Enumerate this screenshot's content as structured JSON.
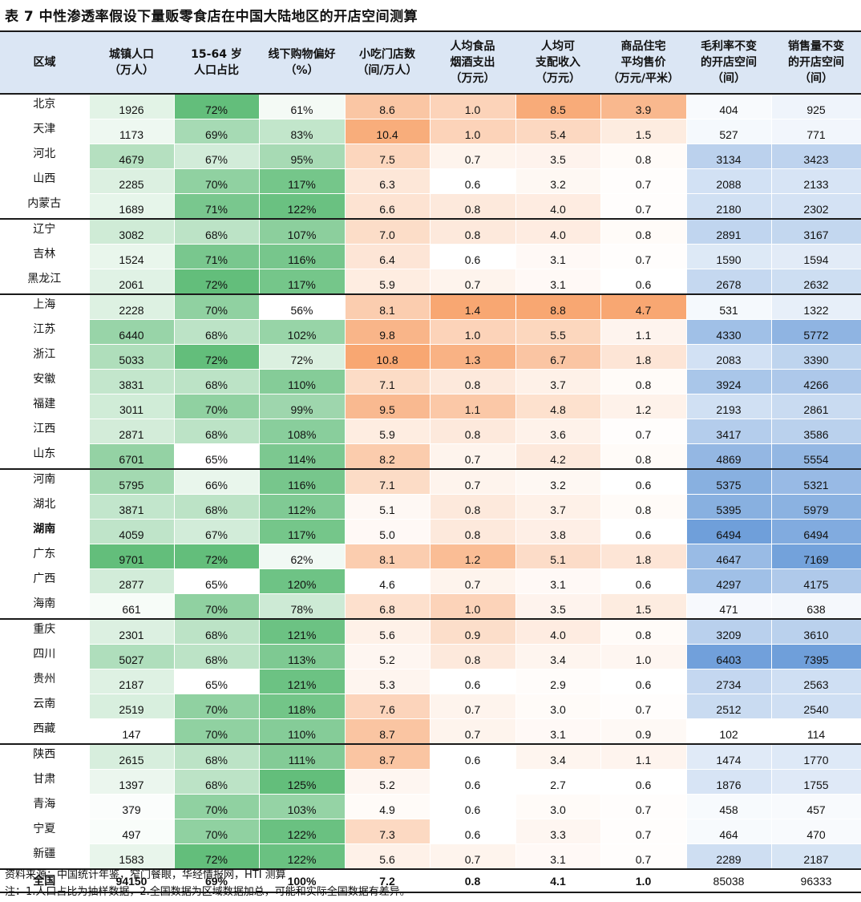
{
  "title": "表 7 中性渗透率假设下量贩零食店在中国大陆地区的开店空间测算",
  "columns": [
    {
      "lines": [
        "区域"
      ]
    },
    {
      "lines": [
        "城镇人口",
        "（万人）"
      ]
    },
    {
      "lines": [
        "15-64 岁",
        "人口占比"
      ]
    },
    {
      "lines": [
        "线下购物偏好",
        "（%）"
      ]
    },
    {
      "lines": [
        "小吃门店数",
        "（间/万人）"
      ]
    },
    {
      "lines": [
        "人均食品",
        "烟酒支出",
        "（万元）"
      ]
    },
    {
      "lines": [
        "人均可",
        "支配收入",
        "（万元）"
      ]
    },
    {
      "lines": [
        "商品住宅",
        "平均售价",
        "（万元/平米）"
      ]
    },
    {
      "lines": [
        "毛利率不变",
        "的开店空间",
        "（间）"
      ]
    },
    {
      "lines": [
        "销售量不变",
        "的开店空间",
        "（间）"
      ]
    }
  ],
  "rows": [
    {
      "region": "北京",
      "pop": "1926",
      "age": "72%",
      "pref": "61%",
      "snack": "8.6",
      "food": "1.0",
      "income": "8.5",
      "house": "3.9",
      "gm": "404",
      "vol": "925",
      "group_start": true
    },
    {
      "region": "天津",
      "pop": "1173",
      "age": "69%",
      "pref": "83%",
      "snack": "10.4",
      "food": "1.0",
      "income": "5.4",
      "house": "1.5",
      "gm": "527",
      "vol": "771"
    },
    {
      "region": "河北",
      "pop": "4679",
      "age": "67%",
      "pref": "95%",
      "snack": "7.5",
      "food": "0.7",
      "income": "3.5",
      "house": "0.8",
      "gm": "3134",
      "vol": "3423"
    },
    {
      "region": "山西",
      "pop": "2285",
      "age": "70%",
      "pref": "117%",
      "snack": "6.3",
      "food": "0.6",
      "income": "3.2",
      "house": "0.7",
      "gm": "2088",
      "vol": "2133"
    },
    {
      "region": "内蒙古",
      "pop": "1689",
      "age": "71%",
      "pref": "122%",
      "snack": "6.6",
      "food": "0.8",
      "income": "4.0",
      "house": "0.7",
      "gm": "2180",
      "vol": "2302"
    },
    {
      "region": "辽宁",
      "pop": "3082",
      "age": "68%",
      "pref": "107%",
      "snack": "7.0",
      "food": "0.8",
      "income": "4.0",
      "house": "0.8",
      "gm": "2891",
      "vol": "3167",
      "group_start": true
    },
    {
      "region": "吉林",
      "pop": "1524",
      "age": "71%",
      "pref": "116%",
      "snack": "6.4",
      "food": "0.6",
      "income": "3.1",
      "house": "0.7",
      "gm": "1590",
      "vol": "1594"
    },
    {
      "region": "黑龙江",
      "pop": "2061",
      "age": "72%",
      "pref": "117%",
      "snack": "5.9",
      "food": "0.7",
      "income": "3.1",
      "house": "0.6",
      "gm": "2678",
      "vol": "2632"
    },
    {
      "region": "上海",
      "pop": "2228",
      "age": "70%",
      "pref": "56%",
      "snack": "8.1",
      "food": "1.4",
      "income": "8.8",
      "house": "4.7",
      "gm": "531",
      "vol": "1322",
      "group_start": true
    },
    {
      "region": "江苏",
      "pop": "6440",
      "age": "68%",
      "pref": "102%",
      "snack": "9.8",
      "food": "1.0",
      "income": "5.5",
      "house": "1.1",
      "gm": "4330",
      "vol": "5772"
    },
    {
      "region": "浙江",
      "pop": "5033",
      "age": "72%",
      "pref": "72%",
      "snack": "10.8",
      "food": "1.3",
      "income": "6.7",
      "house": "1.8",
      "gm": "2083",
      "vol": "3390"
    },
    {
      "region": "安徽",
      "pop": "3831",
      "age": "68%",
      "pref": "110%",
      "snack": "7.1",
      "food": "0.8",
      "income": "3.7",
      "house": "0.8",
      "gm": "3924",
      "vol": "4266"
    },
    {
      "region": "福建",
      "pop": "3011",
      "age": "70%",
      "pref": "99%",
      "snack": "9.5",
      "food": "1.1",
      "income": "4.8",
      "house": "1.2",
      "gm": "2193",
      "vol": "2861"
    },
    {
      "region": "江西",
      "pop": "2871",
      "age": "68%",
      "pref": "108%",
      "snack": "5.9",
      "food": "0.8",
      "income": "3.6",
      "house": "0.7",
      "gm": "3417",
      "vol": "3586"
    },
    {
      "region": "山东",
      "pop": "6701",
      "age": "65%",
      "pref": "114%",
      "snack": "8.2",
      "food": "0.7",
      "income": "4.2",
      "house": "0.8",
      "gm": "4869",
      "vol": "5554"
    },
    {
      "region": "河南",
      "pop": "5795",
      "age": "66%",
      "pref": "116%",
      "snack": "7.1",
      "food": "0.7",
      "income": "3.2",
      "house": "0.6",
      "gm": "5375",
      "vol": "5321",
      "group_start": true
    },
    {
      "region": "湖北",
      "pop": "3871",
      "age": "68%",
      "pref": "112%",
      "snack": "5.1",
      "food": "0.8",
      "income": "3.7",
      "house": "0.8",
      "gm": "5395",
      "vol": "5979"
    },
    {
      "region": "湖南",
      "pop": "4059",
      "age": "67%",
      "pref": "117%",
      "snack": "5.0",
      "food": "0.8",
      "income": "3.8",
      "house": "0.6",
      "gm": "6494",
      "vol": "6494",
      "bold": true
    },
    {
      "region": "广东",
      "pop": "9701",
      "age": "72%",
      "pref": "62%",
      "snack": "8.1",
      "food": "1.2",
      "income": "5.1",
      "house": "1.8",
      "gm": "4647",
      "vol": "7169"
    },
    {
      "region": "广西",
      "pop": "2877",
      "age": "65%",
      "pref": "120%",
      "snack": "4.6",
      "food": "0.7",
      "income": "3.1",
      "house": "0.6",
      "gm": "4297",
      "vol": "4175"
    },
    {
      "region": "海南",
      "pop": "661",
      "age": "70%",
      "pref": "78%",
      "snack": "6.8",
      "food": "1.0",
      "income": "3.5",
      "house": "1.5",
      "gm": "471",
      "vol": "638"
    },
    {
      "region": "重庆",
      "pop": "2301",
      "age": "68%",
      "pref": "121%",
      "snack": "5.6",
      "food": "0.9",
      "income": "4.0",
      "house": "0.8",
      "gm": "3209",
      "vol": "3610",
      "group_start": true
    },
    {
      "region": "四川",
      "pop": "5027",
      "age": "68%",
      "pref": "113%",
      "snack": "5.2",
      "food": "0.8",
      "income": "3.4",
      "house": "1.0",
      "gm": "6403",
      "vol": "7395"
    },
    {
      "region": "贵州",
      "pop": "2187",
      "age": "65%",
      "pref": "121%",
      "snack": "5.3",
      "food": "0.6",
      "income": "2.9",
      "house": "0.6",
      "gm": "2734",
      "vol": "2563"
    },
    {
      "region": "云南",
      "pop": "2519",
      "age": "70%",
      "pref": "118%",
      "snack": "7.6",
      "food": "0.7",
      "income": "3.0",
      "house": "0.7",
      "gm": "2512",
      "vol": "2540"
    },
    {
      "region": "西藏",
      "pop": "147",
      "age": "70%",
      "pref": "110%",
      "snack": "8.7",
      "food": "0.7",
      "income": "3.1",
      "house": "0.9",
      "gm": "102",
      "vol": "114"
    },
    {
      "region": "陕西",
      "pop": "2615",
      "age": "68%",
      "pref": "111%",
      "snack": "8.7",
      "food": "0.6",
      "income": "3.4",
      "house": "1.1",
      "gm": "1474",
      "vol": "1770",
      "group_start": true
    },
    {
      "region": "甘肃",
      "pop": "1397",
      "age": "68%",
      "pref": "125%",
      "snack": "5.2",
      "food": "0.6",
      "income": "2.7",
      "house": "0.6",
      "gm": "1876",
      "vol": "1755"
    },
    {
      "region": "青海",
      "pop": "379",
      "age": "70%",
      "pref": "103%",
      "snack": "4.9",
      "food": "0.6",
      "income": "3.0",
      "house": "0.7",
      "gm": "458",
      "vol": "457"
    },
    {
      "region": "宁夏",
      "pop": "497",
      "age": "70%",
      "pref": "122%",
      "snack": "7.3",
      "food": "0.6",
      "income": "3.3",
      "house": "0.7",
      "gm": "464",
      "vol": "470"
    },
    {
      "region": "新疆",
      "pop": "1583",
      "age": "72%",
      "pref": "122%",
      "snack": "5.6",
      "food": "0.7",
      "income": "3.1",
      "house": "0.7",
      "gm": "2289",
      "vol": "2187"
    }
  ],
  "total": {
    "region": "全国",
    "pop": "94150",
    "age": "69%",
    "pref": "100%",
    "snack": "7.2",
    "food": "0.8",
    "income": "4.1",
    "house": "1.0",
    "gm": "85038",
    "vol": "96333"
  },
  "footnotes": {
    "source": "资料来源：中国统计年鉴，窄门餐眼，华经情报网，HTI 测算",
    "note": "注：1.人口占比为抽样数据，2.全国数据为区域数据加总，可能和实际全国数据有差异。"
  },
  "colors": {
    "header_bg": "#dbe6f4",
    "green_scale": [
      "#ffffff",
      "#63be7b"
    ],
    "orange_scale": [
      "#ffffff",
      "#f8a772"
    ],
    "blue_scale": [
      "#ffffff",
      "#6f9fda"
    ],
    "rule": "#1a1a1a"
  }
}
